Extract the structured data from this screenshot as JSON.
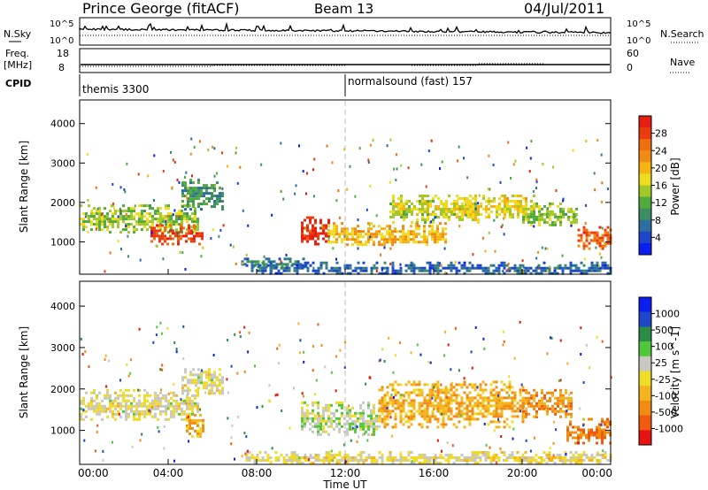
{
  "header": {
    "station": "Prince George (fitACF)",
    "beam": "Beam 13",
    "date": "04/Jul/2011"
  },
  "strip_labels": {
    "nsky": "N.Sky",
    "nsky_ticks": [
      "10^5",
      "10^0"
    ],
    "nsearch": "N.Search",
    "nsearch_ticks": [
      "10^5",
      "10^0"
    ],
    "freq": "Freq.",
    "freq_unit": "[MHz]",
    "freq_ticks": [
      "18",
      "8"
    ],
    "nave": "Nave",
    "nave_ticks": [
      "60",
      "0"
    ],
    "cpid": "CPID"
  },
  "cpid_segments": [
    {
      "start_hour": 0,
      "label": "themis 3300"
    },
    {
      "start_hour": 12,
      "label": "normalsound (fast) 157"
    }
  ],
  "x_axis": {
    "title": "Time UT",
    "tick_labels": [
      "00:00",
      "04:00",
      "08:00",
      "12:00",
      "16:00",
      "20:00",
      "00:00"
    ],
    "range_hours": [
      0,
      24
    ]
  },
  "chart_data": [
    {
      "type": "heatmap",
      "panel": "power",
      "title": "",
      "xlabel": "",
      "ylabel": "Slant Range [km]",
      "y_ticks": [
        "1000",
        "2000",
        "3000",
        "4000"
      ],
      "ylim": [
        180,
        4600
      ],
      "xlim_hours": [
        0,
        24
      ],
      "colorbar": {
        "label": "Power [dB]",
        "ticks": [
          "28",
          "24",
          "20",
          "16",
          "12",
          "8",
          "4"
        ],
        "range": [
          0,
          32
        ],
        "colors": [
          "#0a1ef0",
          "#1e46c8",
          "#2c6ea0",
          "#3c8c64",
          "#50aa3c",
          "#a0c828",
          "#f0dc1e",
          "#f5b414",
          "#f08c14",
          "#ef6e0f",
          "#eb3c0f",
          "#e61e14"
        ]
      },
      "bands": [
        {
          "t0": 0.0,
          "t1": 5.3,
          "r0": 1250,
          "r1": 1950,
          "value": 14
        },
        {
          "t0": 3.2,
          "t1": 5.6,
          "r0": 950,
          "r1": 1450,
          "value": 28
        },
        {
          "t0": 4.6,
          "t1": 6.5,
          "r0": 1800,
          "r1": 2600,
          "value": 10
        },
        {
          "t0": 7.3,
          "t1": 10.3,
          "r0": 350,
          "r1": 600,
          "value": 8
        },
        {
          "t0": 10.0,
          "t1": 11.3,
          "r0": 950,
          "r1": 1650,
          "value": 30
        },
        {
          "t0": 11.2,
          "t1": 16.5,
          "r0": 900,
          "r1": 1500,
          "value": 20
        },
        {
          "t0": 14.0,
          "t1": 18.0,
          "r0": 1500,
          "r1": 2200,
          "value": 16
        },
        {
          "t0": 17.0,
          "t1": 20.5,
          "r0": 1600,
          "r1": 2200,
          "value": 18
        },
        {
          "t0": 20.0,
          "t1": 22.5,
          "r0": 1400,
          "r1": 2000,
          "value": 14
        },
        {
          "t0": 22.5,
          "t1": 24.0,
          "r0": 800,
          "r1": 1400,
          "value": 26
        },
        {
          "t0": 7.5,
          "t1": 24.0,
          "r0": 200,
          "r1": 500,
          "value": 6
        }
      ]
    },
    {
      "type": "heatmap",
      "panel": "velocity",
      "title": "",
      "xlabel": "Time UT",
      "ylabel": "Slant Range [km]",
      "y_ticks": [
        "1000",
        "2000",
        "3000",
        "4000"
      ],
      "ylim": [
        180,
        4600
      ],
      "xlim_hours": [
        0,
        24
      ],
      "colorbar": {
        "label": "Velocity [m s^-1]",
        "ticks": [
          "1000",
          "500",
          "100",
          "25",
          "-25",
          "-100",
          "-500",
          "-1000"
        ],
        "range": [
          -1200,
          1200
        ],
        "colors": [
          "#e6140f",
          "#f05a0f",
          "#f08c14",
          "#f5b41e",
          "#f0dc28",
          "#c8c8c0",
          "#50c83c",
          "#2c8c46",
          "#1e46c8",
          "#0a1ef0"
        ]
      },
      "bands": [
        {
          "t0": 0.0,
          "t1": 5.3,
          "r0": 1250,
          "r1": 2000,
          "value": 0
        },
        {
          "t0": 4.6,
          "t1": 6.5,
          "r0": 1900,
          "r1": 2500,
          "value": 0
        },
        {
          "t0": 4.8,
          "t1": 5.6,
          "r0": 850,
          "r1": 1400,
          "value": -400
        },
        {
          "t0": 10.0,
          "t1": 13.5,
          "r0": 900,
          "r1": 1700,
          "value": 150
        },
        {
          "t0": 13.5,
          "t1": 20.0,
          "r0": 1100,
          "r1": 2200,
          "value": -400
        },
        {
          "t0": 20.0,
          "t1": 22.2,
          "r0": 1300,
          "r1": 2000,
          "value": -550
        },
        {
          "t0": 22.0,
          "t1": 24.0,
          "r0": 700,
          "r1": 1300,
          "value": -700
        },
        {
          "t0": 7.5,
          "t1": 24.0,
          "r0": 200,
          "r1": 500,
          "value": -60
        }
      ]
    }
  ]
}
